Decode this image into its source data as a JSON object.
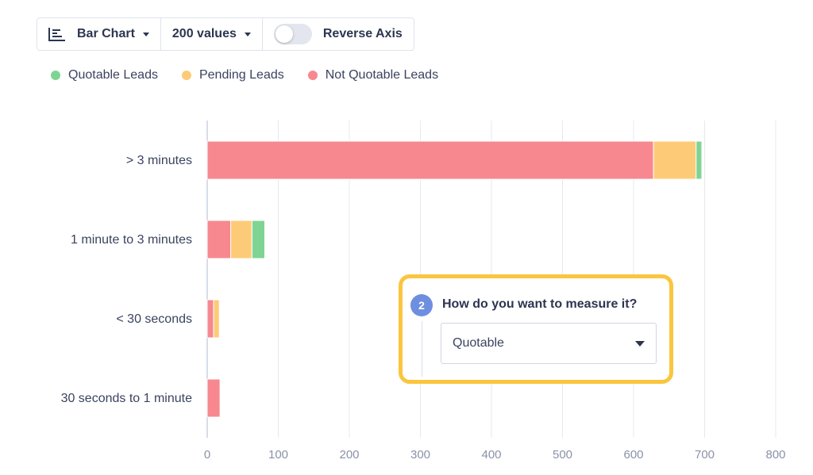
{
  "toolbar": {
    "chart_type_label": "Bar Chart",
    "values_count_label": "200 values",
    "reverse_axis_label": "Reverse Axis",
    "reverse_axis_on": false
  },
  "legend": [
    {
      "label": "Quotable Leads",
      "color": "#7fd494"
    },
    {
      "label": "Pending Leads",
      "color": "#fdcb77"
    },
    {
      "label": "Not Quotable Leads",
      "color": "#f7888f"
    }
  ],
  "chart_data": {
    "type": "bar",
    "orientation": "horizontal",
    "stacked": true,
    "categories": [
      "> 3 minutes",
      "1 minute to 3 minutes",
      "< 30 seconds",
      "30 seconds to 1 minute"
    ],
    "series": [
      {
        "name": "Not Quotable Leads",
        "color": "#f7888f",
        "values": [
          628,
          33,
          9,
          18
        ]
      },
      {
        "name": "Pending Leads",
        "color": "#fdcb77",
        "values": [
          60,
          30,
          8,
          0
        ]
      },
      {
        "name": "Quotable Leads",
        "color": "#7fd494",
        "values": [
          8,
          18,
          0,
          0
        ]
      }
    ],
    "xticks": [
      0,
      100,
      200,
      300,
      400,
      500,
      600,
      700,
      800
    ],
    "xlim": [
      0,
      800
    ],
    "grid": true
  },
  "callout": {
    "step_number": "2",
    "question": "How do you want to measure it?",
    "selected_value": "Quotable"
  },
  "icons": {
    "chart_type": "bar-chart-icon"
  }
}
